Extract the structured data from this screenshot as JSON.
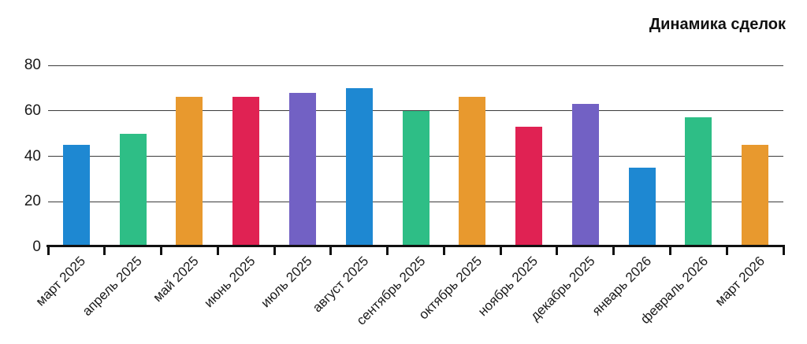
{
  "chart_data": {
    "type": "bar",
    "title": "Динамика сделок",
    "categories": [
      "март 2025",
      "апрель 2025",
      "май 2025",
      "июнь 2025",
      "июль 2025",
      "август 2025",
      "сентябрь 2025",
      "октябрь 2025",
      "ноябрь 2025",
      "декабрь 2025",
      "январь 2026",
      "февраль 2026",
      "март 2026"
    ],
    "values": [
      45,
      50,
      66,
      66,
      68,
      70,
      60,
      66,
      53,
      63,
      35,
      57,
      45
    ],
    "bar_palette": [
      "#1e88d2",
      "#2ebe86",
      "#e8992e",
      "#e02253",
      "#7261c4"
    ],
    "xlabel": "",
    "ylabel": "",
    "ylim": [
      0,
      80
    ],
    "yticks": [
      0,
      20,
      40,
      60,
      80
    ],
    "grid": "horizontal",
    "legend": "none",
    "x_label_rotation_deg": 45
  }
}
